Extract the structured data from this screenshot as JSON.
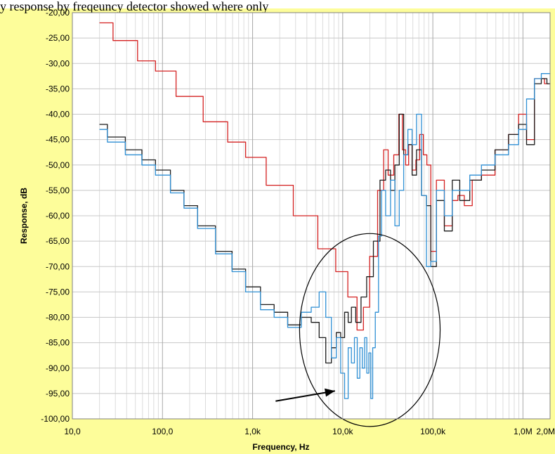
{
  "header_text": "y response by freqeuncy detector showed where only",
  "chart_data": {
    "type": "line",
    "title": "",
    "xlabel": "Frequency, Hz",
    "ylabel": "Response, dB",
    "x_scale": "log",
    "xlim": [
      10,
      2000000
    ],
    "ylim": [
      -100,
      -20
    ],
    "grid": true,
    "x_ticks": [
      10,
      100,
      1000,
      10000,
      100000,
      1000000,
      2000000
    ],
    "x_tick_labels": [
      "10,0",
      "100,0",
      "1,0k",
      "10,0k",
      "100,0k",
      "1,0M",
      "2,0M"
    ],
    "y_ticks": [
      -20,
      -25,
      -30,
      -35,
      -40,
      -45,
      -50,
      -55,
      -60,
      -65,
      -70,
      -75,
      -80,
      -85,
      -90,
      -95,
      -100
    ],
    "y_tick_labels": [
      "-20,00",
      "-25,00",
      "-30,00",
      "-35,00",
      "-40,00",
      "-45,00",
      "-50,00",
      "-55,00",
      "-60,00",
      "-65,00",
      "-70,00",
      "-75,00",
      "-80,00",
      "-85,00",
      "-90,00",
      "-95,00",
      "-100,00"
    ],
    "background": "#ffffff",
    "frame_color": "#fdfd9a",
    "series": [
      {
        "color": "#d42020",
        "x": [
          20,
          40,
          70,
          100,
          200,
          400,
          700,
          1000,
          2000,
          4000,
          7000,
          10000,
          13000,
          16000,
          18000,
          22000,
          27000,
          30000,
          34000,
          40000,
          44000,
          48000,
          52000,
          56000,
          62000,
          68000,
          75000,
          82000,
          90000,
          100000,
          120000,
          150000,
          180000,
          200000,
          250000,
          300000,
          400000,
          600000,
          800000,
          1000000,
          1200000,
          1500000,
          2000000
        ],
        "y": [
          -22,
          -25.5,
          -29.5,
          -31.5,
          -36.5,
          -41.5,
          -45.5,
          -48.5,
          -54,
          -60,
          -66.5,
          -71,
          -76,
          -82.5,
          -78,
          -68,
          -55,
          -47,
          -52,
          -48,
          -40,
          -47,
          -50,
          -46,
          -51,
          -49,
          -44,
          -48,
          -50,
          -67,
          -53,
          -62,
          -57,
          -56,
          -58,
          -53,
          -52,
          -47,
          -44,
          -40,
          -45,
          -33,
          -34
        ]
      },
      {
        "color": "#1a1a1a",
        "x": [
          20,
          30,
          50,
          70,
          100,
          150,
          200,
          300,
          500,
          700,
          1000,
          1500,
          2000,
          3000,
          4000,
          5000,
          6000,
          7000,
          8000,
          9000,
          10000,
          11000,
          12000,
          13000,
          15000,
          17000,
          20000,
          24000,
          28000,
          32000,
          36000,
          40000,
          45000,
          50000,
          56000,
          62000,
          70000,
          80000,
          90000,
          100000,
          120000,
          150000,
          180000,
          220000,
          300000,
          400000,
          600000,
          800000,
          1000000,
          1200000,
          1500000,
          1700000,
          2000000
        ],
        "y": [
          -42,
          -44.5,
          -47,
          -49,
          -51,
          -55,
          -58,
          -62,
          -67,
          -70.5,
          -74,
          -77.5,
          -79,
          -81.5,
          -80,
          -81,
          -84,
          -89,
          -86,
          -83,
          -84,
          -79,
          -81,
          -78,
          -81,
          -76,
          -72,
          -65,
          -53,
          -51,
          -55,
          -50,
          -40,
          -48,
          -46,
          -52,
          -47,
          -56,
          -58,
          -70,
          -57,
          -63,
          -53,
          -57,
          -53,
          -51,
          -47,
          -44,
          -42,
          -46,
          -34,
          -33,
          -34
        ]
      },
      {
        "color": "#2e8fd4",
        "x": [
          20,
          30,
          50,
          70,
          100,
          150,
          200,
          300,
          500,
          700,
          1000,
          1500,
          2000,
          3000,
          4000,
          5000,
          6000,
          7000,
          8000,
          9000,
          10000,
          11000,
          12000,
          13000,
          14000,
          15000,
          16000,
          17000,
          18000,
          19000,
          20000,
          21000,
          22000,
          24000,
          26000,
          28000,
          32000,
          36000,
          40000,
          45000,
          50000,
          56000,
          62000,
          70000,
          80000,
          90000,
          100000,
          120000,
          150000,
          180000,
          220000,
          300000,
          400000,
          600000,
          800000,
          1000000,
          1200000,
          1500000,
          1700000,
          2000000
        ],
        "y": [
          -43,
          -45.5,
          -48,
          -50,
          -52,
          -55.5,
          -58.5,
          -62.5,
          -67.5,
          -71,
          -75,
          -78.5,
          -80,
          -82,
          -79,
          -78,
          -75,
          -80,
          -88,
          -84,
          -91,
          -96,
          -86,
          -89,
          -84,
          -92,
          -86,
          -90,
          -84,
          -91,
          -87,
          -96,
          -86,
          -79,
          -64,
          -55,
          -60,
          -53,
          -62,
          -55,
          -48,
          -43,
          -46,
          -40,
          -56,
          -70,
          -69,
          -55,
          -60,
          -55,
          -55,
          -52,
          -50,
          -48,
          -46,
          -43,
          -37,
          -33,
          -32,
          -32
        ]
      }
    ],
    "annotations": [
      {
        "type": "ellipse",
        "cx_freq": 20000,
        "cy_db": -82.5,
        "rx_decades": 0.78,
        "ry_db": 19
      },
      {
        "type": "arrow",
        "from": [
          1800,
          -96.5
        ],
        "to": [
          8200,
          -94.5
        ]
      }
    ]
  }
}
